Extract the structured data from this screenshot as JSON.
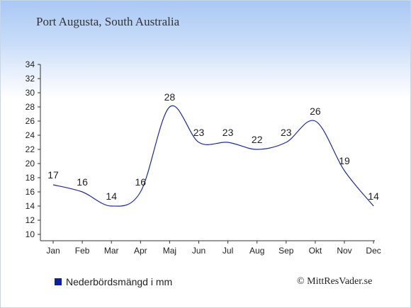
{
  "place": "Port Augusta, South Australia",
  "legend_label": "Nederbördsmängd i mm",
  "copyright": "© MittResVader.se",
  "colors": {
    "line": "#1a2aa6",
    "legend_swatch": "#0d1f9a",
    "axis": "#333333",
    "text": "#222222"
  },
  "chart_data": {
    "type": "line",
    "categories": [
      "Jan",
      "Feb",
      "Mar",
      "Apr",
      "Maj",
      "Jun",
      "Jul",
      "Aug",
      "Sep",
      "Okt",
      "Nov",
      "Dec"
    ],
    "series": [
      {
        "name": "Nederbördsmängd i mm",
        "values": [
          17,
          16,
          14,
          16,
          28,
          23,
          23,
          22,
          23,
          26,
          19,
          14
        ]
      }
    ],
    "data_labels": [
      "17",
      "16",
      "14",
      "16",
      "28",
      "23",
      "23",
      "22",
      "23",
      "26",
      "19",
      "14"
    ],
    "yticks": [
      "10",
      "12",
      "14",
      "16",
      "18",
      "20",
      "22",
      "24",
      "26",
      "28",
      "30",
      "32",
      "34"
    ],
    "ylim": [
      10,
      34
    ],
    "grid": false,
    "legend": "bottom-left"
  }
}
